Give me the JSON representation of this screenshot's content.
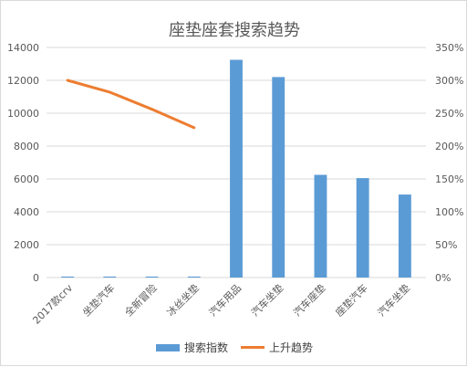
{
  "colors": {
    "bar": "#5B9BD5",
    "line": "#ED7D31",
    "grid": "#d9d9d9",
    "tick_text": "#595959"
  },
  "chart_data": {
    "type": "bar",
    "title": "座垫座套搜索趋势",
    "categories": [
      "2017款crv",
      "坐垫汽车",
      "全新冒险",
      "冰丝坐垫",
      "汽车用品",
      "汽车坐垫",
      "汽车座垫",
      "座垫汽车",
      "汽车坐垫"
    ],
    "series": [
      {
        "name": "搜索指数",
        "type": "bar",
        "axis": "left",
        "values": [
          60,
          60,
          60,
          60,
          13250,
          12200,
          6250,
          6050,
          5050
        ]
      },
      {
        "name": "上升趋势",
        "type": "line",
        "axis": "right",
        "values": [
          3.0,
          2.82,
          2.56,
          2.28,
          null,
          null,
          null,
          null,
          null
        ]
      }
    ],
    "y_left": {
      "ylim": [
        0,
        14000
      ],
      "ticks": [
        0,
        2000,
        4000,
        6000,
        8000,
        10000,
        12000,
        14000
      ],
      "tick_labels": [
        "0",
        "2000",
        "4000",
        "6000",
        "8000",
        "10000",
        "12000",
        "14000"
      ]
    },
    "y_right": {
      "ylim": [
        0,
        3.5
      ],
      "ticks": [
        0,
        0.5,
        1.0,
        1.5,
        2.0,
        2.5,
        3.0,
        3.5
      ],
      "tick_labels": [
        "0%",
        "50%",
        "100%",
        "150%",
        "200%",
        "250%",
        "300%",
        "350%"
      ]
    },
    "grid": true,
    "legend_position": "bottom"
  }
}
